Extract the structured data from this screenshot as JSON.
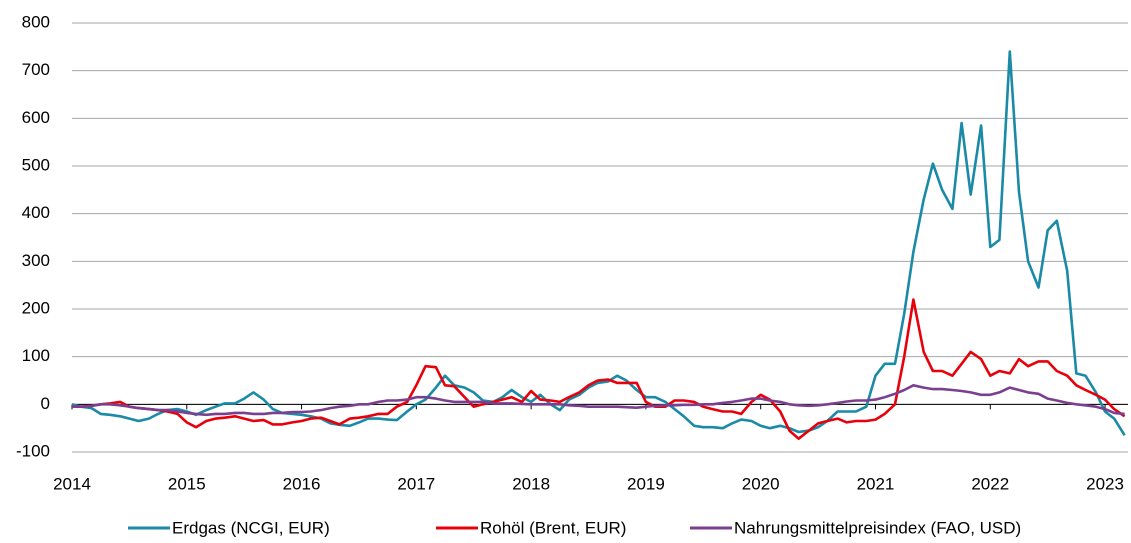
{
  "chart_data": {
    "type": "line",
    "x": [
      2014.0,
      2014.08,
      2014.17,
      2014.25,
      2014.33,
      2014.42,
      2014.5,
      2014.58,
      2014.67,
      2014.75,
      2014.83,
      2014.92,
      2015.0,
      2015.08,
      2015.17,
      2015.25,
      2015.33,
      2015.42,
      2015.5,
      2015.58,
      2015.67,
      2015.75,
      2015.83,
      2015.92,
      2016.0,
      2016.08,
      2016.17,
      2016.25,
      2016.33,
      2016.42,
      2016.5,
      2016.58,
      2016.67,
      2016.75,
      2016.83,
      2016.92,
      2017.0,
      2017.08,
      2017.17,
      2017.25,
      2017.33,
      2017.42,
      2017.5,
      2017.58,
      2017.67,
      2017.75,
      2017.83,
      2017.92,
      2018.0,
      2018.08,
      2018.17,
      2018.25,
      2018.33,
      2018.42,
      2018.5,
      2018.58,
      2018.67,
      2018.75,
      2018.83,
      2018.92,
      2019.0,
      2019.08,
      2019.17,
      2019.25,
      2019.33,
      2019.42,
      2019.5,
      2019.58,
      2019.67,
      2019.75,
      2019.83,
      2019.92,
      2020.0,
      2020.08,
      2020.17,
      2020.25,
      2020.33,
      2020.42,
      2020.5,
      2020.58,
      2020.67,
      2020.75,
      2020.83,
      2020.92,
      2021.0,
      2021.08,
      2021.17,
      2021.25,
      2021.33,
      2021.42,
      2021.5,
      2021.58,
      2021.67,
      2021.75,
      2021.83,
      2021.92,
      2022.0,
      2022.08,
      2022.17,
      2022.25,
      2022.33,
      2022.42,
      2022.5,
      2022.58,
      2022.67,
      2022.75,
      2022.83,
      2022.92,
      2023.0,
      2023.08,
      2023.17
    ],
    "series": [
      {
        "name": "Erdgas (NCGI, EUR)",
        "color": "#1a8aa6",
        "values": [
          0,
          -5,
          -8,
          -20,
          -22,
          -25,
          -30,
          -35,
          -30,
          -20,
          -12,
          -10,
          -15,
          -22,
          -12,
          -5,
          2,
          2,
          12,
          25,
          10,
          -10,
          -18,
          -20,
          -22,
          -25,
          -30,
          -40,
          -43,
          -45,
          -38,
          -30,
          -30,
          -32,
          -33,
          -15,
          0,
          10,
          35,
          60,
          40,
          35,
          25,
          8,
          5,
          15,
          30,
          15,
          5,
          20,
          0,
          -12,
          10,
          20,
          35,
          45,
          48,
          60,
          50,
          30,
          15,
          15,
          5,
          -10,
          -25,
          -45,
          -48,
          -48,
          -50,
          -40,
          -32,
          -35,
          -45,
          -50,
          -45,
          -50,
          -58,
          -55,
          -48,
          -35,
          -15,
          -15,
          -15,
          -5,
          60,
          85,
          85,
          190,
          320,
          430,
          505,
          450,
          410,
          590,
          440,
          585,
          330,
          345,
          740,
          445,
          300,
          245,
          365,
          385,
          280,
          65,
          60,
          25,
          -15,
          -30,
          -65
        ]
      },
      {
        "name": "Rohöl (Brent, EUR)",
        "color": "#e8000b",
        "values": [
          -5,
          -5,
          -3,
          0,
          2,
          5,
          -5,
          -8,
          -10,
          -12,
          -15,
          -20,
          -38,
          -48,
          -35,
          -30,
          -28,
          -25,
          -30,
          -35,
          -33,
          -42,
          -42,
          -38,
          -35,
          -30,
          -28,
          -35,
          -42,
          -30,
          -28,
          -25,
          -20,
          -20,
          -5,
          5,
          40,
          80,
          78,
          40,
          38,
          15,
          -5,
          0,
          5,
          10,
          15,
          5,
          28,
          10,
          8,
          5,
          15,
          25,
          40,
          50,
          52,
          45,
          45,
          45,
          5,
          -5,
          -5,
          8,
          8,
          5,
          -5,
          -10,
          -15,
          -15,
          -20,
          5,
          20,
          10,
          -15,
          -55,
          -72,
          -55,
          -40,
          -35,
          -30,
          -38,
          -35,
          -35,
          -32,
          -20,
          0,
          100,
          220,
          110,
          70,
          70,
          60,
          85,
          110,
          95,
          60,
          70,
          65,
          95,
          80,
          90,
          90,
          70,
          60,
          40,
          30,
          20,
          10,
          -10,
          -25
        ]
      },
      {
        "name": "Nahrungsmittelpreisindex (FAO, USD)",
        "color": "#7b3f8f",
        "values": [
          -5,
          -5,
          -3,
          0,
          0,
          -2,
          -5,
          -8,
          -10,
          -12,
          -12,
          -15,
          -18,
          -20,
          -22,
          -20,
          -20,
          -18,
          -18,
          -20,
          -20,
          -18,
          -18,
          -16,
          -16,
          -15,
          -12,
          -8,
          -5,
          -3,
          0,
          0,
          5,
          8,
          8,
          10,
          15,
          15,
          12,
          8,
          5,
          5,
          5,
          5,
          2,
          2,
          2,
          1,
          0,
          0,
          0,
          0,
          -2,
          -3,
          -5,
          -5,
          -5,
          -5,
          -6,
          -7,
          -5,
          -3,
          -2,
          -2,
          -1,
          -1,
          0,
          0,
          3,
          5,
          8,
          12,
          12,
          8,
          5,
          0,
          -2,
          -3,
          -2,
          0,
          3,
          6,
          8,
          8,
          10,
          15,
          22,
          30,
          40,
          35,
          32,
          32,
          30,
          28,
          25,
          20,
          20,
          25,
          35,
          30,
          25,
          22,
          12,
          8,
          3,
          0,
          -2,
          -5,
          -10,
          -18,
          -20
        ]
      }
    ],
    "xlim": [
      2014,
      2023.2
    ],
    "xticks": [
      2014,
      2015,
      2016,
      2017,
      2018,
      2019,
      2020,
      2021,
      2022,
      2023
    ],
    "ylim": [
      -100,
      800
    ],
    "yticks": [
      -100,
      0,
      100,
      200,
      300,
      400,
      500,
      600,
      700,
      800
    ],
    "grid": true
  }
}
